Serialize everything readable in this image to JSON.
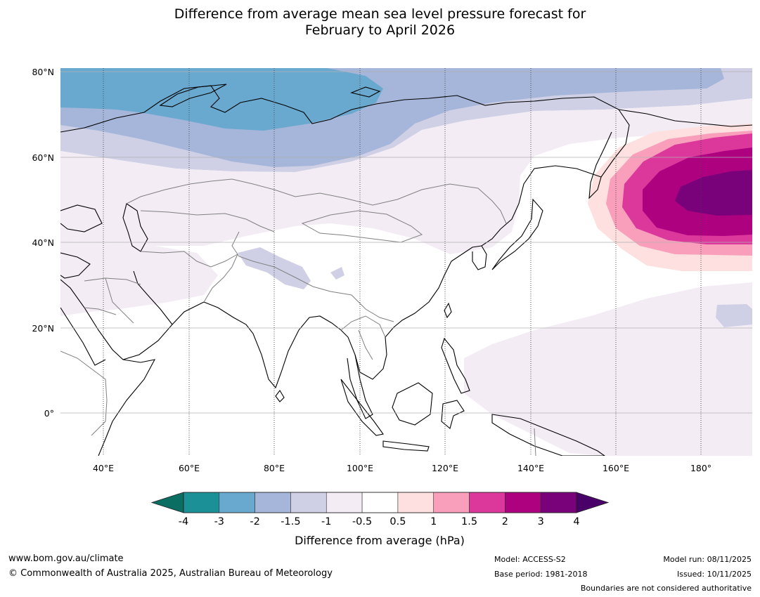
{
  "header": {
    "title_line1": "Difference from average mean sea level pressure forecast for",
    "title_line2": "February to April 2026"
  },
  "map": {
    "lat_labels": [
      "80°N",
      "60°N",
      "40°N",
      "20°N",
      "0°"
    ],
    "lon_labels": [
      "40°E",
      "60°E",
      "80°E",
      "100°E",
      "120°E",
      "140°E",
      "160°E",
      "180°"
    ],
    "extent": {
      "lon_min": 30,
      "lon_max": 192,
      "lat_min": -10,
      "lat_max": 81
    }
  },
  "colorbar": {
    "title": "Difference from average (hPa)",
    "tick_labels": [
      "-4",
      "-3",
      "-2",
      "-1.5",
      "-1",
      "-0.5",
      "0.5",
      "1",
      "1.5",
      "2",
      "3",
      "4"
    ],
    "colors": {
      "below_min": "#0b6e63",
      "bins": [
        "#1c9097",
        "#6aa9cf",
        "#a5b6da",
        "#cfd0e5",
        "#f3ecf5",
        "#ffffff",
        "#fde0df",
        "#f99fbb",
        "#dc379b",
        "#ad0180",
        "#79017a"
      ],
      "above_max": "#4a0069"
    }
  },
  "footer": {
    "website": "www.bom.gov.au/climate",
    "copyright": "© Commonwealth of Australia 2025, Australian Bureau of Meteorology",
    "model": "Model: ACCESS-S2",
    "base_period": "Base period: 1981-2018",
    "model_run": "Model run: 08/11/2025",
    "issued": "Issued: 10/11/2025",
    "disclaimer": "Boundaries are not considered authoritative"
  }
}
